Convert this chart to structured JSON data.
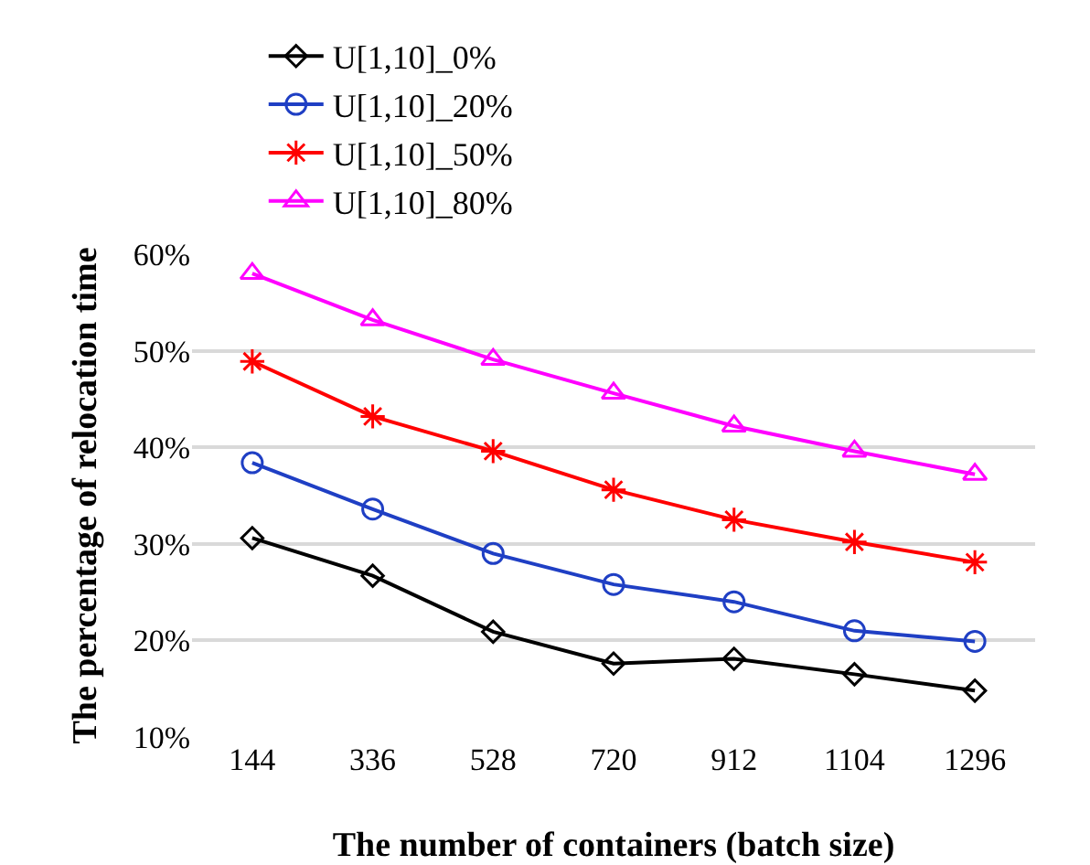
{
  "chart_data": {
    "type": "line",
    "xlabel": "The number of containers (batch size)",
    "ylabel": "The percentage of relocation time",
    "categories": [
      "144",
      "336",
      "528",
      "720",
      "912",
      "1104",
      "1296"
    ],
    "series": [
      {
        "name": "U[1,10]_0%",
        "color": "#000000",
        "marker": "diamond",
        "values": [
          30.6,
          26.7,
          20.9,
          17.6,
          18.1,
          16.5,
          14.8
        ]
      },
      {
        "name": "U[1,10]_20%",
        "color": "#1f3fc4",
        "marker": "circle",
        "values": [
          38.4,
          33.6,
          29.0,
          25.8,
          24.0,
          21.0,
          19.9
        ]
      },
      {
        "name": "U[1,10]_50%",
        "color": "#ff0000",
        "marker": "cross",
        "values": [
          48.9,
          43.2,
          39.6,
          35.6,
          32.5,
          30.2,
          28.1
        ]
      },
      {
        "name": "U[1,10]_80%",
        "color": "#ff00ff",
        "marker": "triangle",
        "values": [
          58.0,
          53.2,
          49.1,
          45.6,
          42.2,
          39.6,
          37.2
        ]
      }
    ],
    "ylim": [
      10,
      60
    ],
    "yticks": [
      {
        "value": 10,
        "label": "10%"
      },
      {
        "value": 20,
        "label": "20%"
      },
      {
        "value": 30,
        "label": "30%"
      },
      {
        "value": 40,
        "label": "40%"
      },
      {
        "value": 50,
        "label": "50%"
      },
      {
        "value": 60,
        "label": "60%"
      }
    ],
    "grid": "y",
    "legend": "top",
    "line_style": "solid"
  }
}
